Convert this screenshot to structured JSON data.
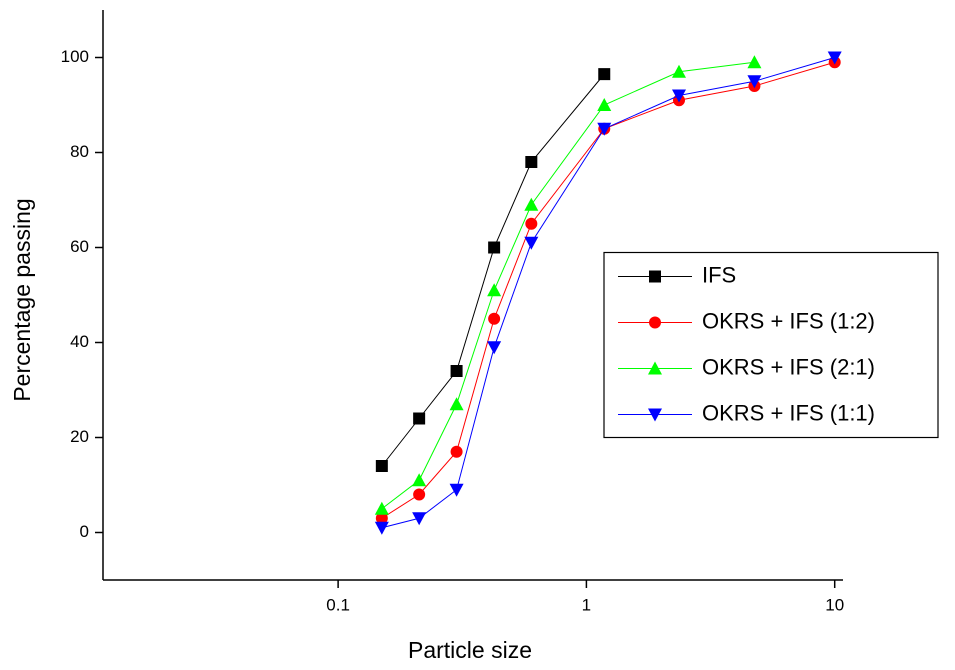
{
  "chart_data": {
    "type": "line",
    "x_label": "Particle size",
    "y_label": "Percentage passing",
    "x": [
      0.15,
      0.212,
      0.3,
      0.425,
      0.6,
      1.18,
      2.36,
      4.75,
      10
    ],
    "series": [
      {
        "name": "IFS",
        "color": "#000000",
        "marker": "square",
        "values": [
          14,
          24,
          34,
          60,
          78,
          96.5,
          null,
          null,
          null
        ]
      },
      {
        "name": "OKRS + IFS (1:2)",
        "color": "#ff0000",
        "marker": "circle",
        "values": [
          3,
          8,
          17,
          45,
          65,
          85,
          91,
          94,
          99
        ]
      },
      {
        "name": "OKRS + IFS (2:1)",
        "color": "#00ff00",
        "marker": "triangle-up",
        "values": [
          5,
          11,
          27,
          51,
          69,
          90,
          97,
          99,
          null
        ]
      },
      {
        "name": "OKRS + IFS (1:1)",
        "color": "#0000ff",
        "marker": "triangle-down",
        "values": [
          1,
          3,
          9,
          39,
          61,
          85,
          92,
          95,
          100
        ]
      }
    ],
    "xscale": "log",
    "xlim": [
      0.0113,
      10.8
    ],
    "xticks": [
      0.1,
      1,
      10
    ],
    "ylim": [
      -10,
      110
    ],
    "yticks": [
      0,
      20,
      40,
      60,
      80,
      100
    ],
    "legend": "center right"
  }
}
